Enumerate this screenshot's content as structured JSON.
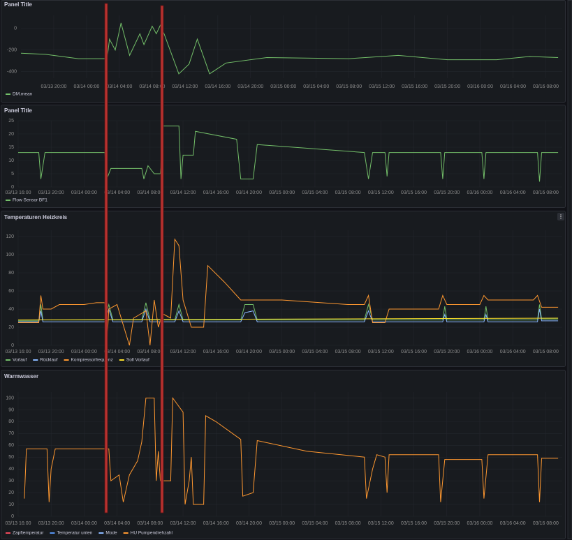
{
  "chart_data": [
    {
      "type": "line",
      "title": "Panel Title",
      "xlim": [
        "03/13 16:00",
        "03/16 10:00"
      ],
      "ylim": [
        -460,
        120
      ],
      "yticks": [
        -400,
        -200,
        0
      ],
      "xticks": [
        "03/13 20:00",
        "03/14 00:00",
        "03/14 04:00",
        "03/14 08:00",
        "03/14 12:00",
        "03/14 16:00",
        "03/14 20:00",
        "03/15 00:00",
        "03/15 04:00",
        "03/15 08:00",
        "03/15 12:00",
        "03/15 16:00",
        "03/15 20:00",
        "03/16 00:00",
        "03/16 04:00",
        "03/16 08:00"
      ],
      "grid": true,
      "series": [
        {
          "name": "DM.mean",
          "color": "#73bf69",
          "x": [
            "03/13 16:00",
            "03/13 19:00",
            "03/13 23:00",
            "03/14 02:30",
            "03/14 02:48",
            "03/14 03:30",
            "03/14 04:12",
            "03/14 05:15",
            "03/14 06:30",
            "03/14 07:00",
            "03/14 08:00",
            "03/14 08:30",
            "03/14 09:00",
            "03/14 09:30",
            "03/14 11:15",
            "03/14 12:30",
            "03/14 13:30",
            "03/14 15:00",
            "03/14 17:00",
            "03/14 22:00",
            "03/15 08:00",
            "03/15 14:00",
            "03/15 20:00",
            "03/16 02:00",
            "03/16 06:00",
            "03/16 09:30"
          ],
          "values": [
            -230,
            -240,
            -280,
            -280,
            -100,
            -200,
            50,
            -250,
            -50,
            -150,
            20,
            -50,
            30,
            -60,
            -420,
            -330,
            -100,
            -420,
            -320,
            -270,
            -280,
            -250,
            -290,
            -290,
            -260,
            -270
          ]
        }
      ]
    },
    {
      "type": "line",
      "title": "Panel Title",
      "xlim": [
        "03/13 16:00",
        "03/16 10:00"
      ],
      "ylim": [
        0,
        25
      ],
      "yticks": [
        0,
        5,
        10,
        15,
        20,
        25
      ],
      "xticks": [
        "03/13 16:00",
        "03/13 20:00",
        "03/14 00:00",
        "03/14 04:00",
        "03/14 08:00",
        "03/14 12:00",
        "03/14 16:00",
        "03/14 20:00",
        "03/15 00:00",
        "03/15 04:00",
        "03/15 08:00",
        "03/15 12:00",
        "03/15 16:00",
        "03/15 20:00",
        "03/16 00:00",
        "03/16 04:00",
        "03/16 08:00"
      ],
      "grid": true,
      "series": [
        {
          "name": "Flow Sensor BF1",
          "color": "#73bf69",
          "x": [
            "03/13 16:00",
            "03/13 18:30",
            "03/13 18:45",
            "03/13 19:15",
            "03/14 02:30",
            "03/14 02:45",
            "03/14 03:15",
            "03/14 07:00",
            "03/14 07:15",
            "03/14 07:45",
            "03/14 08:30",
            "03/14 09:15",
            "03/14 09:30",
            "03/14 11:30",
            "03/14 11:45",
            "03/14 12:00",
            "03/14 13:15",
            "03/14 13:30",
            "03/14 18:30",
            "03/14 19:00",
            "03/14 20:30",
            "03/14 21:00",
            "03/15 10:00",
            "03/15 10:30",
            "03/15 11:00",
            "03/15 12:30",
            "03/15 12:45",
            "03/15 13:00",
            "03/15 19:15",
            "03/15 19:30",
            "03/15 19:45",
            "03/16 00:15",
            "03/16 00:30",
            "03/16 00:45",
            "03/16 07:00",
            "03/16 07:15",
            "03/16 07:30",
            "03/16 09:30"
          ],
          "values": [
            13,
            13,
            3,
            13,
            13,
            3,
            7,
            7,
            3,
            8,
            5,
            5,
            23,
            23,
            3,
            12,
            12,
            21,
            18,
            3,
            3,
            16,
            13,
            3,
            13,
            13,
            4,
            13,
            13,
            3,
            13,
            13,
            3,
            13,
            13,
            2,
            13,
            13
          ]
        }
      ]
    },
    {
      "type": "line",
      "title": "Temperaturen Heizkreis",
      "xlim": [
        "03/13 16:00",
        "03/16 10:00"
      ],
      "ylim": [
        0,
        127
      ],
      "yticks": [
        0,
        20,
        40,
        60,
        80,
        100,
        120
      ],
      "xticks": [
        "03/13 16:00",
        "03/13 20:00",
        "03/14 00:00",
        "03/14 04:00",
        "03/14 08:00",
        "03/14 12:00",
        "03/14 16:00",
        "03/14 20:00",
        "03/15 00:00",
        "03/15 04:00",
        "03/15 08:00",
        "03/15 12:00",
        "03/15 16:00",
        "03/15 20:00",
        "03/16 00:00",
        "03/16 04:00",
        "03/16 08:00"
      ],
      "grid": true,
      "series": [
        {
          "name": "Vorlauf",
          "color": "#73bf69",
          "x": [
            "03/13 16:00",
            "03/13 18:30",
            "03/13 18:45",
            "03/13 19:00",
            "03/14 02:30",
            "03/14 03:00",
            "03/14 03:30",
            "03/14 07:00",
            "03/14 07:30",
            "03/14 08:00",
            "03/14 11:00",
            "03/14 11:30",
            "03/14 12:00",
            "03/14 19:00",
            "03/14 19:30",
            "03/14 20:30",
            "03/14 21:00",
            "03/15 10:00",
            "03/15 10:30",
            "03/15 11:00",
            "03/15 19:30",
            "03/15 19:45",
            "03/15 20:00",
            "03/16 00:30",
            "03/16 00:45",
            "03/16 01:00",
            "03/16 07:00",
            "03/16 07:15",
            "03/16 07:30",
            "03/16 09:30"
          ],
          "values": [
            27,
            27,
            45,
            28,
            28,
            45,
            28,
            28,
            47,
            28,
            28,
            45,
            28,
            28,
            45,
            45,
            28,
            28,
            45,
            28,
            28,
            43,
            28,
            28,
            43,
            28,
            28,
            45,
            29,
            29
          ]
        },
        {
          "name": "Rücklauf",
          "color": "#8ab8ff",
          "x": [
            "03/13 16:00",
            "03/13 18:30",
            "03/13 18:45",
            "03/13 19:00",
            "03/14 02:30",
            "03/14 03:00",
            "03/14 03:30",
            "03/14 07:00",
            "03/14 07:30",
            "03/14 08:00",
            "03/14 11:00",
            "03/14 11:30",
            "03/14 12:00",
            "03/14 19:00",
            "03/14 19:30",
            "03/14 20:30",
            "03/14 21:00",
            "03/15 10:00",
            "03/15 10:30",
            "03/15 11:00",
            "03/15 19:30",
            "03/15 19:45",
            "03/15 20:00",
            "03/16 00:30",
            "03/16 00:45",
            "03/16 01:00",
            "03/16 07:00",
            "03/16 07:15",
            "03/16 07:30",
            "03/16 09:30"
          ],
          "values": [
            26,
            26,
            38,
            26,
            26,
            40,
            26,
            26,
            40,
            26,
            26,
            38,
            26,
            26,
            36,
            38,
            26,
            26,
            38,
            26,
            26,
            34,
            26,
            26,
            34,
            26,
            26,
            40,
            27,
            27
          ]
        },
        {
          "name": "Kompressorfrequenz",
          "color": "#ff9830",
          "x": [
            "03/13 16:00",
            "03/13 18:30",
            "03/13 18:45",
            "03/13 19:00",
            "03/13 20:00",
            "03/13 21:00",
            "03/14 00:00",
            "03/14 01:30",
            "03/14 02:30",
            "03/14 02:45",
            "03/14 03:00",
            "03/14 04:00",
            "03/14 05:30",
            "03/14 06:00",
            "03/14 07:30",
            "03/14 08:00",
            "03/14 08:30",
            "03/14 09:00",
            "03/14 09:30",
            "03/14 10:30",
            "03/14 11:00",
            "03/14 11:30",
            "03/14 12:00",
            "03/14 13:00",
            "03/14 14:30",
            "03/14 15:00",
            "03/14 17:00",
            "03/14 18:00",
            "03/14 19:00",
            "03/15 00:00",
            "03/15 08:00",
            "03/15 10:00",
            "03/15 10:30",
            "03/15 11:00",
            "03/15 12:30",
            "03/15 13:00",
            "03/15 19:00",
            "03/15 19:30",
            "03/15 20:00",
            "03/16 00:00",
            "03/16 00:30",
            "03/16 01:00",
            "03/16 06:30",
            "03/16 07:00",
            "03/16 07:30",
            "03/16 09:30"
          ],
          "values": [
            25,
            25,
            55,
            40,
            40,
            45,
            45,
            47,
            47,
            0,
            40,
            45,
            0,
            30,
            38,
            0,
            50,
            20,
            35,
            30,
            117,
            110,
            50,
            20,
            20,
            88,
            70,
            60,
            50,
            50,
            45,
            45,
            55,
            25,
            25,
            40,
            40,
            55,
            45,
            45,
            55,
            50,
            50,
            55,
            42,
            42
          ]
        },
        {
          "name": "Soll Vorlauf",
          "color": "#fade2a",
          "x": [
            "03/13 16:00",
            "03/16 09:30"
          ],
          "values": [
            28,
            30
          ]
        }
      ]
    },
    {
      "type": "line",
      "title": "Warmwasser",
      "xlim": [
        "03/13 16:00",
        "03/16 10:00"
      ],
      "ylim": [
        0,
        105
      ],
      "yticks": [
        0,
        10,
        20,
        30,
        40,
        50,
        60,
        70,
        80,
        90,
        100
      ],
      "xticks": [
        "03/13 16:00",
        "03/13 20:00",
        "03/14 00:00",
        "03/14 04:00",
        "03/14 08:00",
        "03/14 12:00",
        "03/14 16:00",
        "03/14 20:00",
        "03/15 00:00",
        "03/15 04:00",
        "03/15 08:00",
        "03/15 12:00",
        "03/15 16:00",
        "03/15 20:00",
        "03/16 00:00",
        "03/16 04:00",
        "03/16 08:00"
      ],
      "grid": true,
      "series": [
        {
          "name": "Zapftemperatur",
          "color": "#f2495c"
        },
        {
          "name": "Temperatur unten",
          "color": "#5794f2"
        },
        {
          "name": "Mode",
          "color": "#8ab8ff"
        },
        {
          "name": "HU Pumpendrehzahl",
          "color": "#ff9830",
          "x": [
            "03/13 16:45",
            "03/13 17:00",
            "03/13 19:30",
            "03/13 19:45",
            "03/13 20:00",
            "03/13 20:30",
            "03/14 03:00",
            "03/14 03:15",
            "03/14 04:15",
            "03/14 04:45",
            "03/14 05:30",
            "03/14 06:30",
            "03/14 07:00",
            "03/14 07:30",
            "03/14 08:30",
            "03/14 08:45",
            "03/14 09:00",
            "03/14 09:15",
            "03/14 10:30",
            "03/14 10:45",
            "03/14 12:00",
            "03/14 12:15",
            "03/14 12:45",
            "03/14 13:00",
            "03/14 13:15",
            "03/14 14:30",
            "03/14 14:45",
            "03/14 16:00",
            "03/14 19:00",
            "03/14 19:15",
            "03/14 20:30",
            "03/14 21:00",
            "03/15 03:00",
            "03/15 10:00",
            "03/15 10:15",
            "03/15 11:00",
            "03/15 11:30",
            "03/15 12:30",
            "03/15 12:45",
            "03/15 13:00",
            "03/15 19:00",
            "03/15 19:15",
            "03/15 19:45",
            "03/16 00:15",
            "03/16 00:30",
            "03/16 01:00",
            "03/16 07:00",
            "03/16 07:15",
            "03/16 07:30",
            "03/16 09:30"
          ],
          "values": [
            15,
            57,
            57,
            12,
            40,
            57,
            57,
            30,
            35,
            12,
            35,
            47,
            63,
            100,
            100,
            30,
            55,
            30,
            30,
            100,
            88,
            10,
            30,
            50,
            10,
            10,
            85,
            80,
            65,
            17,
            20,
            64,
            55,
            50,
            15,
            40,
            52,
            50,
            20,
            52,
            52,
            12,
            48,
            48,
            15,
            52,
            52,
            12,
            49,
            49
          ]
        }
      ]
    }
  ]
}
